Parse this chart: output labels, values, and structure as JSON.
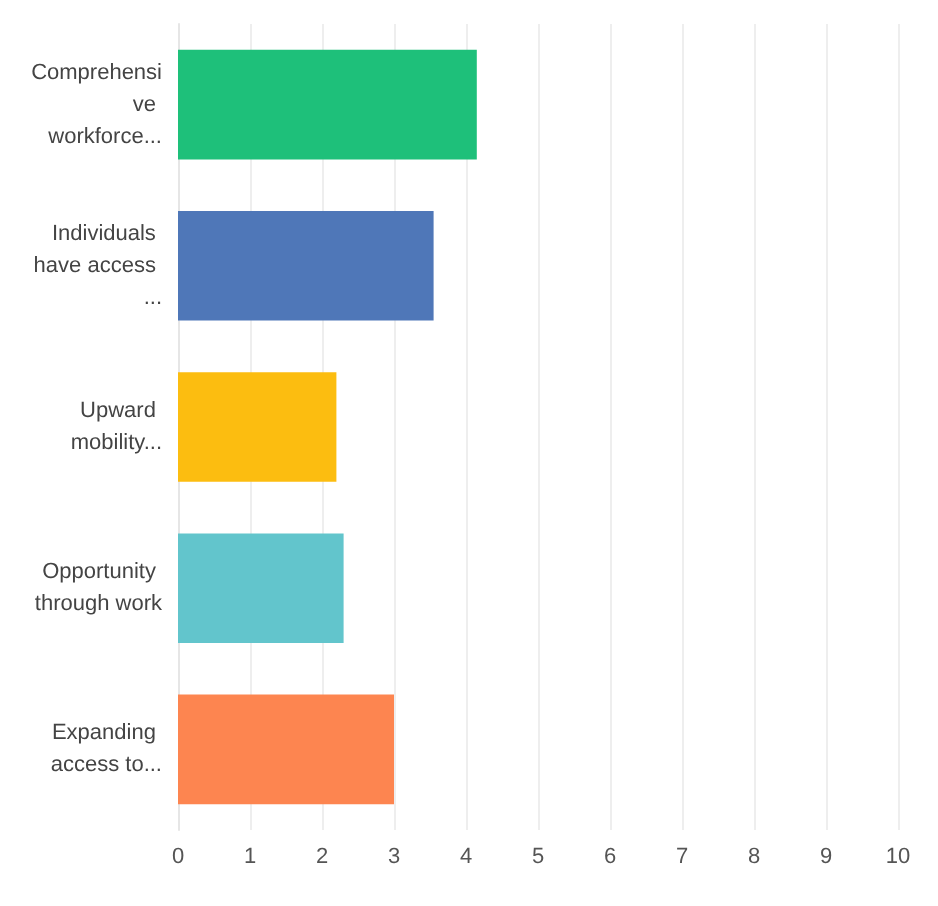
{
  "chart_data": {
    "type": "bar",
    "orientation": "horizontal",
    "categories": [
      "Comprehensive workforce...",
      "Individuals have access ...",
      "Upward mobility...",
      "Opportunity through work",
      "Expanding access to..."
    ],
    "values": [
      4.15,
      3.55,
      2.2,
      2.3,
      3.0
    ],
    "colors": [
      "#1ec07a",
      "#4f77b8",
      "#fcbd10",
      "#62c5cc",
      "#fd8550"
    ],
    "xlim": [
      0,
      10
    ],
    "xticks": [
      0,
      1,
      2,
      3,
      4,
      5,
      6,
      7,
      8,
      9,
      10
    ],
    "grid": "x"
  }
}
